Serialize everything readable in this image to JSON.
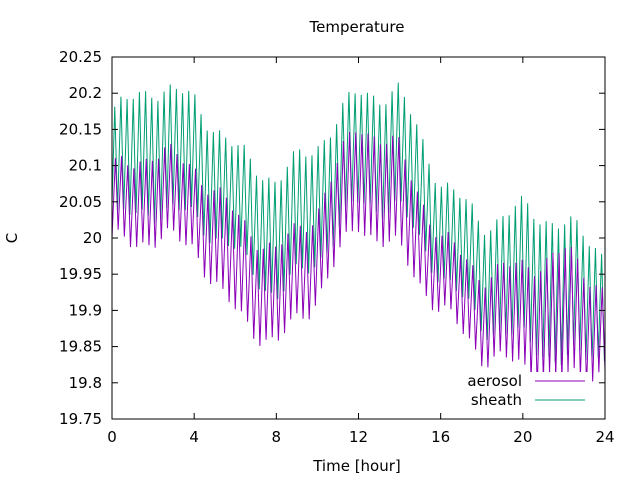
{
  "chart_data": {
    "type": "line",
    "title": "Temperature",
    "xlabel": "Time [hour]",
    "ylabel": "C",
    "xlim": [
      0,
      24
    ],
    "ylim": [
      19.75,
      20.25
    ],
    "xticks": [
      "0",
      "4",
      "8",
      "12",
      "16",
      "20",
      "24"
    ],
    "yticks": [
      "19.75",
      "19.8",
      "19.85",
      "19.9",
      "19.95",
      "20",
      "20.05",
      "20.1",
      "20.15",
      "20.2",
      "20.25"
    ],
    "grid": false,
    "legend_position": "bottom-right",
    "oscillation_period_hours": 0.3,
    "series": [
      {
        "name": "aerosol",
        "color": "#8b00b8",
        "upper_envelope": [
          [
            0,
            20.09
          ],
          [
            2,
            20.12
          ],
          [
            4,
            20.1
          ],
          [
            6,
            20.03
          ],
          [
            8,
            19.98
          ],
          [
            10,
            20.04
          ],
          [
            12,
            20.16
          ],
          [
            14,
            20.12
          ],
          [
            16,
            20.0
          ],
          [
            18,
            19.95
          ],
          [
            20,
            19.96
          ],
          [
            22,
            19.98
          ],
          [
            24,
            19.93
          ]
        ],
        "lower_envelope": [
          [
            0,
            19.99
          ],
          [
            2,
            20.0
          ],
          [
            4,
            19.99
          ],
          [
            5.5,
            19.91
          ],
          [
            8,
            19.85
          ],
          [
            10,
            19.92
          ],
          [
            12,
            20.02
          ],
          [
            14,
            19.98
          ],
          [
            16,
            19.9
          ],
          [
            18,
            19.84
          ],
          [
            20,
            19.82
          ],
          [
            22,
            19.8
          ],
          [
            24,
            19.82
          ]
        ]
      },
      {
        "name": "sheath",
        "color": "#009e73",
        "upper_envelope": [
          [
            0,
            20.17
          ],
          [
            2,
            20.21
          ],
          [
            4,
            20.19
          ],
          [
            6,
            20.12
          ],
          [
            8,
            20.08
          ],
          [
            10,
            20.13
          ],
          [
            12,
            20.2
          ],
          [
            14,
            20.2
          ],
          [
            16,
            20.08
          ],
          [
            18,
            20.02
          ],
          [
            20,
            20.04
          ],
          [
            22,
            20.02
          ],
          [
            24,
            19.98
          ]
        ],
        "lower_envelope": [
          [
            0,
            20.02
          ],
          [
            2,
            20.04
          ],
          [
            4,
            20.03
          ],
          [
            6,
            19.98
          ],
          [
            8,
            19.92
          ],
          [
            10,
            19.97
          ],
          [
            12,
            20.05
          ],
          [
            14,
            20.04
          ],
          [
            16,
            19.95
          ],
          [
            18,
            19.88
          ],
          [
            20,
            19.86
          ],
          [
            22,
            19.83
          ],
          [
            24,
            19.84
          ]
        ]
      }
    ]
  }
}
